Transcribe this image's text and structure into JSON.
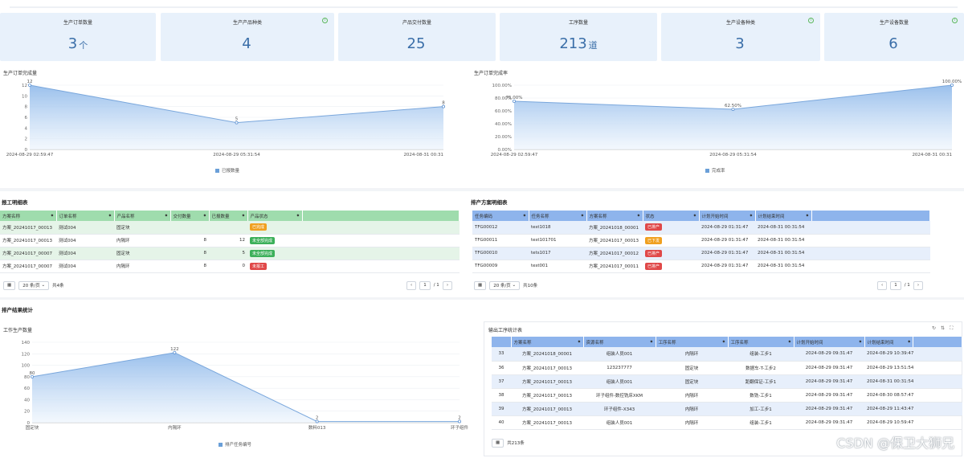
{
  "cards": [
    {
      "title": "生产订单数量",
      "value": "3",
      "unit": "个",
      "info": false
    },
    {
      "title": "生产产品种类",
      "value": "4",
      "unit": "",
      "info": true
    },
    {
      "title": "产品交付数量",
      "value": "25",
      "unit": "",
      "info": false
    },
    {
      "title": "工序数量",
      "value": "213",
      "unit": "道",
      "info": false
    },
    {
      "title": "生产设备种类",
      "value": "3",
      "unit": "",
      "info": true
    },
    {
      "title": "生产设备数量",
      "value": "6",
      "unit": "",
      "info": true
    }
  ],
  "charts": {
    "orders": {
      "title": "生产订单完成量",
      "legend": "已报数量"
    },
    "rate": {
      "title": "生产订单完成率",
      "legend": "完成率"
    },
    "process": {
      "title": "工作生产数量",
      "legend": "排产任务编号"
    }
  },
  "chart_data": [
    {
      "type": "area",
      "title": "生产订单完成量",
      "x": [
        "2024-08-29 02:59:47",
        "2024-08-29 05:31:54",
        "2024-08-31 00:31"
      ],
      "series": [
        {
          "name": "已报数量",
          "values": [
            12,
            5,
            8
          ]
        }
      ],
      "yticks": [
        "0",
        "2",
        "4",
        "6",
        "8",
        "10",
        "12"
      ],
      "ylim": [
        0,
        12
      ]
    },
    {
      "type": "area",
      "title": "生产订单完成率",
      "x": [
        "2024-08-29 02:59:47",
        "2024-08-29 05:31:54",
        "2024-08-31 00:31"
      ],
      "series": [
        {
          "name": "完成率",
          "values": [
            75,
            62.5,
            100
          ]
        }
      ],
      "value_labels": [
        "75.00%",
        "62.50%",
        "100.00%"
      ],
      "yticks": [
        "0.00%",
        "20.00%",
        "40.00%",
        "60.00%",
        "80.00%",
        "100.00%"
      ],
      "ylim": [
        0,
        100
      ]
    },
    {
      "type": "area",
      "title": "工作生产数量",
      "categories": [
        "固定块",
        "内隔环",
        "数料013",
        "环子组件"
      ],
      "series": [
        {
          "name": "排产任务编号",
          "values": [
            80,
            122,
            2,
            2
          ]
        }
      ],
      "yticks": [
        "0",
        "20",
        "40",
        "60",
        "80",
        "100",
        "120",
        "140"
      ],
      "ylim": [
        0,
        140
      ]
    }
  ],
  "report": {
    "title": "报工明细表",
    "columns": [
      "方案名称",
      "订单名称",
      "产品名称",
      "交付数量",
      "已报数量",
      "产品状态"
    ],
    "rows": [
      {
        "c0": "方案_20241017_00013",
        "c1": "测试004",
        "c2": "固定块",
        "c3": "",
        "c4": "",
        "status": "已完成",
        "color": "#f0a020"
      },
      {
        "c0": "方案_20241017_00013",
        "c1": "测试004",
        "c2": "内隔环",
        "c3": "8",
        "c4": "12",
        "status": "未全部完成",
        "color": "#3cb05a"
      },
      {
        "c0": "方案_20241017_00007",
        "c1": "测试004",
        "c2": "固定块",
        "c3": "8",
        "c4": "5",
        "status": "未全部完成",
        "color": "#3cb05a"
      },
      {
        "c0": "方案_20241017_00007",
        "c1": "测试004",
        "c2": "内隔环",
        "c3": "8",
        "c4": "0",
        "status": "未报工",
        "color": "#e04848"
      }
    ],
    "page_size": "20 条/页",
    "total": "共4条",
    "page": "1",
    "pages": "/ 1"
  },
  "schedule": {
    "title": "排产方案明细表",
    "columns": [
      "任务编码",
      "任务名称",
      "方案名称",
      "状态",
      "计划开始时间",
      "计划结束时间"
    ],
    "rows": [
      {
        "c0": "TFG00012",
        "c1": "test1018",
        "c2": "方案_20241018_00001",
        "status": "已排产",
        "color": "#e04848",
        "c4": "2024-08-29 01:31:47",
        "c5": "2024-08-31 00:31:54"
      },
      {
        "c0": "TFG00011",
        "c1": "test101701",
        "c2": "方案_20241017_00013",
        "status": "已下发",
        "color": "#f0a020",
        "c4": "2024-08-29 01:31:47",
        "c5": "2024-08-31 00:31:54"
      },
      {
        "c0": "TFG00010",
        "c1": "tets1017",
        "c2": "方案_20241017_00012",
        "status": "已排产",
        "color": "#e04848",
        "c4": "2024-08-29 01:31:47",
        "c5": "2024-08-31 00:31:54"
      },
      {
        "c0": "TFG00009",
        "c1": "test001",
        "c2": "方案_20241017_00011",
        "status": "已排产",
        "color": "#e04848",
        "c4": "2024-08-29 01:31:47",
        "c5": "2024-08-31 00:31:54"
      }
    ],
    "page_size": "20 条/页",
    "total": "共10条",
    "page": "1",
    "pages": "/ 1"
  },
  "section_title": "排产结果统计",
  "output": {
    "title": "输出工序统计表",
    "columns": [
      "",
      "方案名称",
      "资源名称",
      "工序名称",
      "工序名称",
      "计划开始时间",
      "计划结束时间"
    ],
    "rows": [
      [
        "33",
        "方案_20241018_00001",
        "组装人员001",
        "内隔环",
        "组装-工步1",
        "2024-08-29 09:31:47",
        "2024-08-29 10:39:47"
      ],
      [
        "36",
        "方案_20241017_00013",
        "123237777",
        "固定块",
        "数据车-T-工步2",
        "2024-08-29 09:31:47",
        "2024-08-29 13:51:54"
      ],
      [
        "37",
        "方案_20241017_00013",
        "组装人员001",
        "固定块",
        "距翻保证-工步1",
        "2024-08-29 09:31:47",
        "2024-08-31 00:31:54"
      ],
      [
        "38",
        "方案_20241017_00013",
        "环子组件-数控铣床XKM",
        "内隔环",
        "数铣-工步1",
        "2024-08-29 09:31:47",
        "2024-08-30 08:57:47"
      ],
      [
        "39",
        "方案_20241017_00013",
        "环子组件-X343",
        "内隔环",
        "加工-工步1",
        "2024-08-29 09:31:47",
        "2024-08-29 11:43:47"
      ],
      [
        "40",
        "方案_20241017_00013",
        "组装人员001",
        "内隔环",
        "组装-工步1",
        "2024-08-29 09:31:47",
        "2024-08-29 10:59:47"
      ]
    ],
    "total": "共213条"
  },
  "watermark": "CSDN @保卫大狮兄"
}
